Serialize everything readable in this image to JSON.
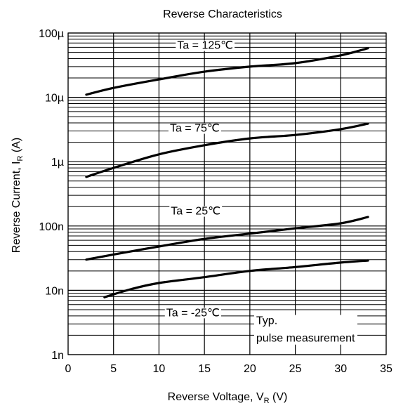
{
  "chart_data": {
    "type": "line",
    "title": "Reverse Characteristics",
    "xlabel": "Reverse Voltage, V",
    "xlabel_sub": "R",
    "xlabel_unit": " (V)",
    "ylabel": "Reverse Current, I",
    "ylabel_sub": "R",
    "ylabel_unit": " (A)",
    "xlim": [
      0,
      35
    ],
    "ylim": [
      1e-09,
      0.0001
    ],
    "yscale": "log",
    "grid": true,
    "x_ticks": [
      0,
      5,
      10,
      15,
      20,
      25,
      30,
      35
    ],
    "x_tick_labels": [
      "0",
      "5",
      "10",
      "15",
      "20",
      "25",
      "30",
      "35"
    ],
    "y_ticks": [
      0.0001,
      1e-05,
      1e-06,
      1e-07,
      1e-08,
      1e-09
    ],
    "y_tick_labels": [
      "100µ",
      "10µ",
      "1µ",
      "100n",
      "10n",
      "1n"
    ],
    "annotation_lines": [
      "Typ.",
      "pulse measurement"
    ],
    "series": [
      {
        "name": "Ta = 125℃",
        "x": [
          2,
          5,
          10,
          15,
          20,
          25,
          30,
          33
        ],
        "y": [
          1.1e-05,
          1.4e-05,
          1.9e-05,
          2.5e-05,
          3e-05,
          3.4e-05,
          4.5e-05,
          5.8e-05
        ]
      },
      {
        "name": "Ta = 75℃",
        "x": [
          2,
          5,
          10,
          15,
          20,
          25,
          30,
          33
        ],
        "y": [
          5.8e-07,
          8e-07,
          1.3e-06,
          1.8e-06,
          2.3e-06,
          2.6e-06,
          3.2e-06,
          3.9e-06
        ]
      },
      {
        "name": "Ta = 25℃",
        "x": [
          2,
          5,
          10,
          15,
          20,
          25,
          30,
          33
        ],
        "y": [
          3e-08,
          3.6e-08,
          4.8e-08,
          6.3e-08,
          7.6e-08,
          9.2e-08,
          1.1e-07,
          1.38e-07
        ]
      },
      {
        "name": "Ta = -25℃",
        "x": [
          4,
          7,
          10,
          15,
          20,
          25,
          30,
          33
        ],
        "y": [
          7.8e-09,
          1.05e-08,
          1.3e-08,
          1.6e-08,
          2e-08,
          2.3e-08,
          2.7e-08,
          2.9e-08
        ]
      }
    ]
  }
}
